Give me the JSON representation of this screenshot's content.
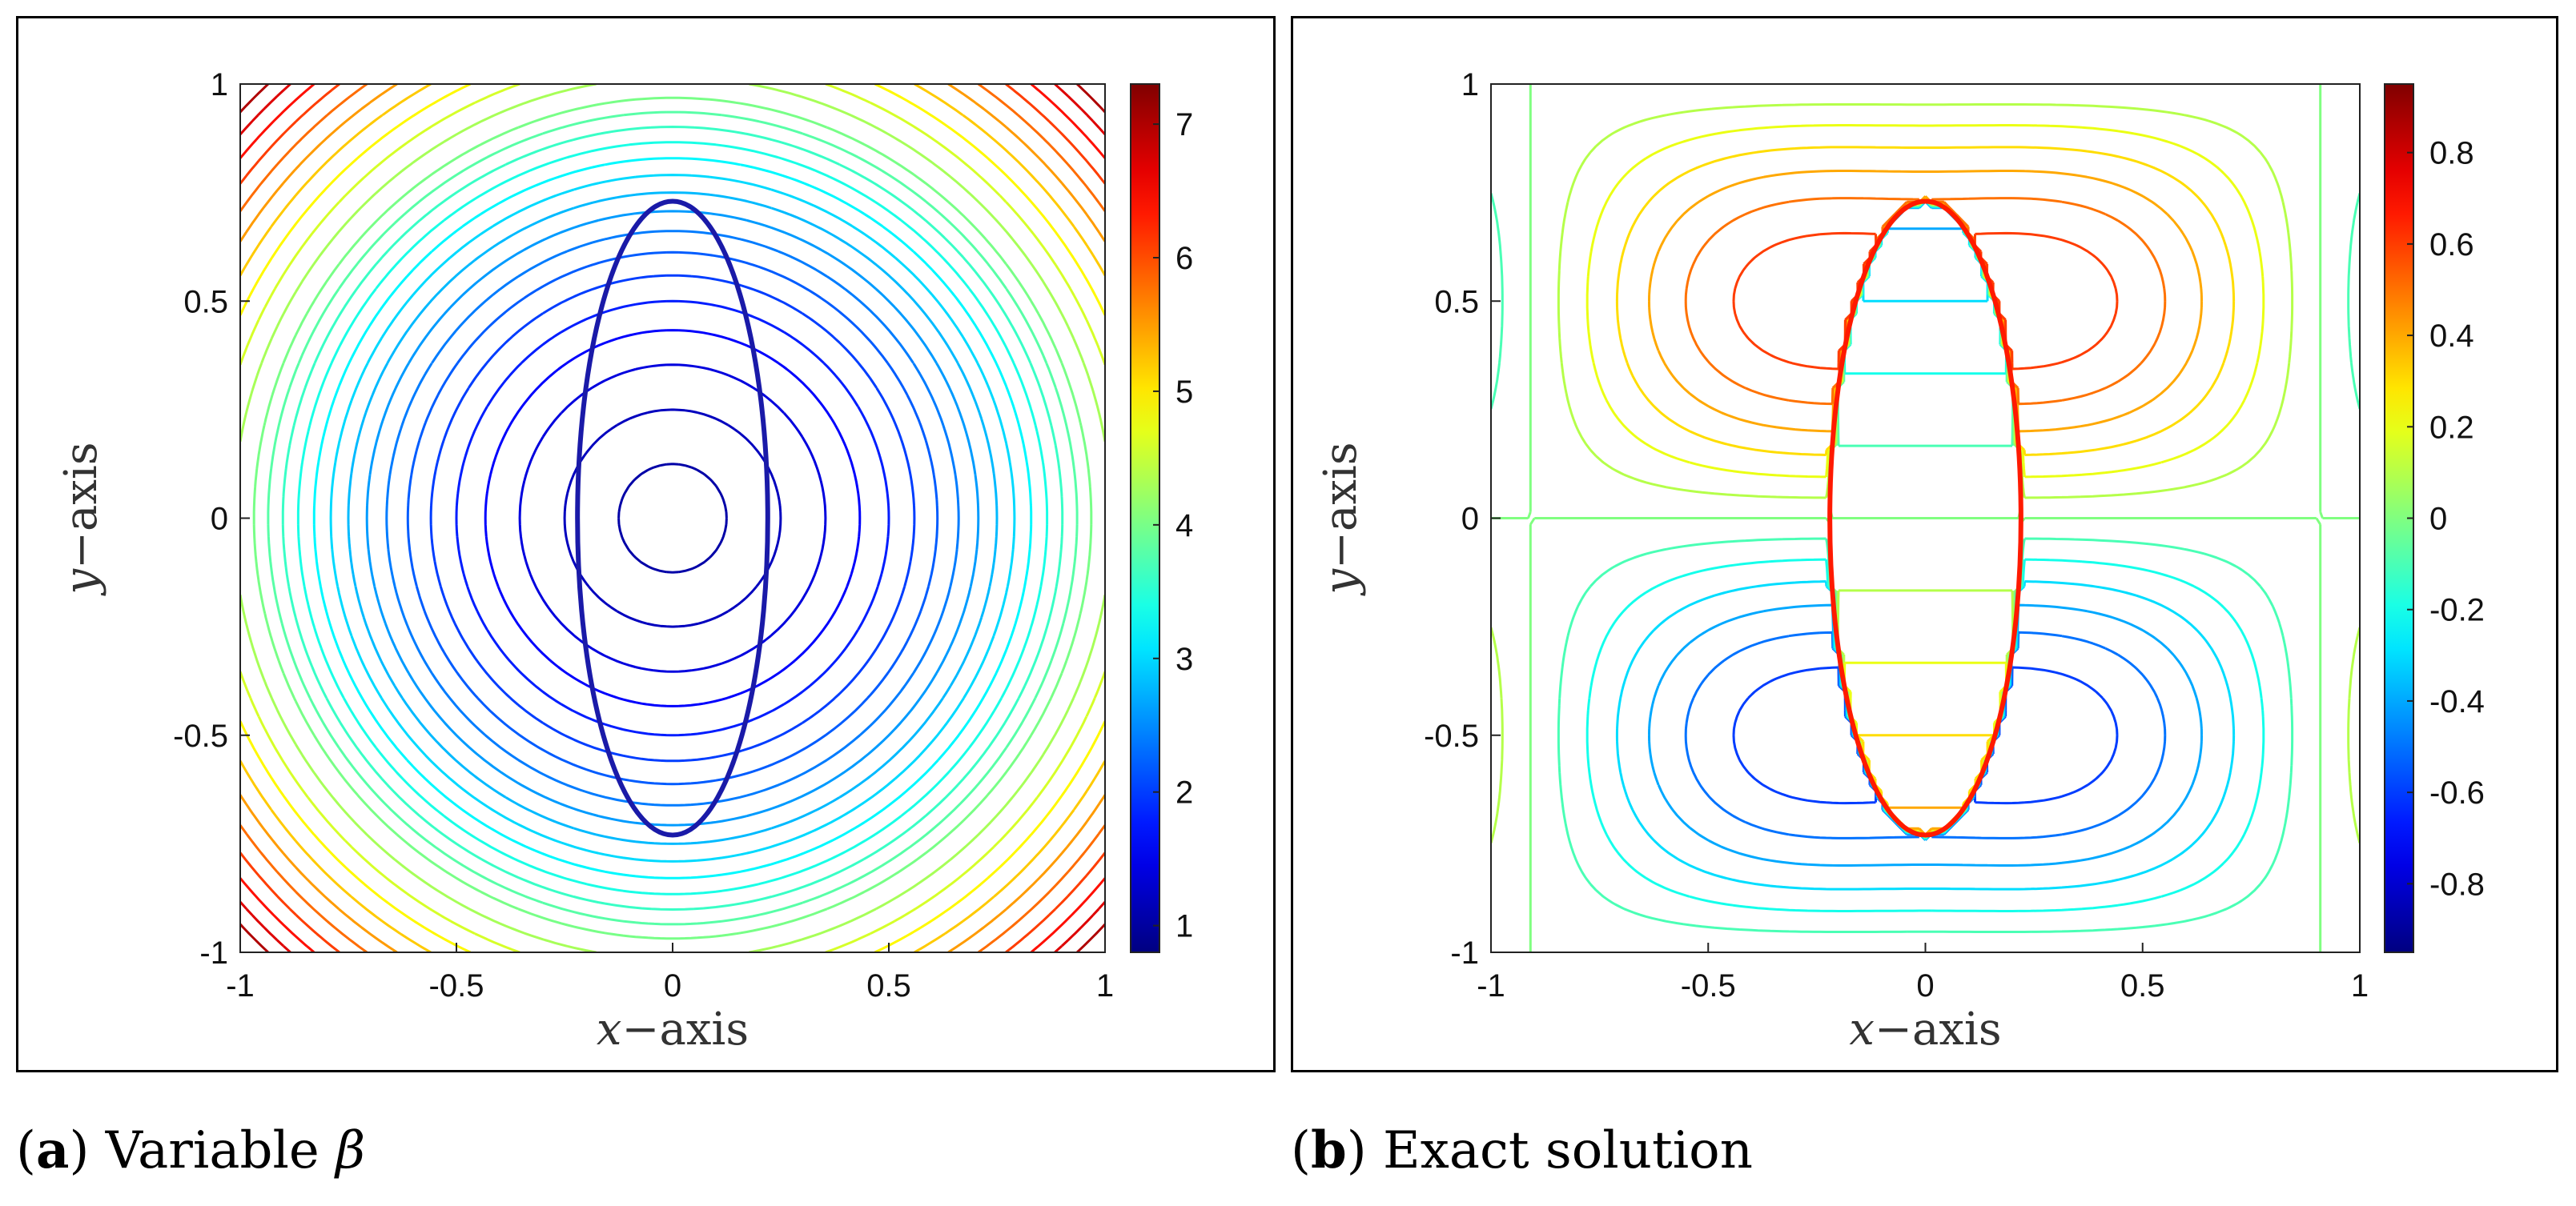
{
  "chart_data": [
    {
      "type": "contour",
      "panel_id": "a",
      "title": "",
      "xlabel_var": "x",
      "xlabel_rest": "axis",
      "ylabel_var": "y",
      "ylabel_rest": "axis",
      "xlim": [
        -1,
        1
      ],
      "ylim": [
        -1,
        1
      ],
      "xticks": [
        "-1",
        "-0.5",
        "0",
        "0.5",
        "1"
      ],
      "yticks": [
        "-1",
        "-0.5",
        "0",
        "0.5",
        "1"
      ],
      "xtick_values": [
        -1,
        -0.5,
        0,
        0.5,
        1
      ],
      "ytick_values": [
        -1,
        -0.5,
        0,
        0.5,
        1
      ],
      "colorbar": {
        "min": 0.8,
        "max": 7.3,
        "ticks": [
          1,
          2,
          3,
          4,
          5,
          6,
          7
        ],
        "tick_labels": [
          "1",
          "2",
          "3",
          "4",
          "5",
          "6",
          "7"
        ]
      },
      "field": "beta = 1 + 3.2*(x^2+y^2) inside-out, concentric circles centered at origin",
      "contour_levels": [
        1.05,
        1.2,
        1.4,
        1.6,
        1.8,
        2.0,
        2.2,
        2.4,
        2.6,
        2.8,
        3.0,
        3.2,
        3.4,
        3.6,
        3.8,
        4.0,
        4.3,
        4.6,
        4.9,
        5.2,
        5.5,
        5.8,
        6.1,
        6.4,
        6.7,
        7.0
      ],
      "interface": {
        "shape": "ellipse",
        "a": 0.22,
        "b": 0.73
      }
    },
    {
      "type": "contour",
      "panel_id": "b",
      "title": "",
      "xlabel_var": "x",
      "xlabel_rest": "axis",
      "ylabel_var": "y",
      "ylabel_rest": "axis",
      "xlim": [
        -1,
        1
      ],
      "ylim": [
        -1,
        1
      ],
      "xticks": [
        "-1",
        "-0.5",
        "0",
        "0.5",
        "1"
      ],
      "yticks": [
        "-1",
        "-0.5",
        "0",
        "0.5",
        "1"
      ],
      "xtick_values": [
        -1,
        -0.5,
        0,
        0.5,
        1
      ],
      "ytick_values": [
        -1,
        -0.5,
        0,
        0.5,
        1
      ],
      "colorbar": {
        "min": -0.95,
        "max": 0.95,
        "ticks": [
          0.8,
          0.6,
          0.4,
          0.2,
          0,
          -0.2,
          -0.4,
          -0.6,
          -0.8
        ],
        "tick_labels": [
          "0.8",
          "0.6",
          "0.4",
          "0.2",
          "0",
          "-0.2",
          "-0.4",
          "-0.6",
          "-0.8"
        ]
      },
      "field": "exact solution, dipole-like pattern around ellipse",
      "contour_levels": [
        -0.9,
        -0.8,
        -0.7,
        -0.6,
        -0.5,
        -0.4,
        -0.3,
        -0.2,
        -0.1,
        0.0,
        0.1,
        0.2,
        0.3,
        0.4,
        0.5,
        0.6,
        0.7,
        0.8,
        0.9
      ],
      "interface": {
        "shape": "ellipse",
        "a": 0.22,
        "b": 0.73
      }
    }
  ],
  "captions": {
    "a": {
      "letter": "a",
      "open": "(",
      "close": ")",
      "text": "Variable",
      "symbol": "β"
    },
    "b": {
      "letter": "b",
      "open": "(",
      "close": ")",
      "text": "Exact solution"
    }
  },
  "colors": {
    "frame": "#000000",
    "ellipse_outline": "#1a1aa8"
  }
}
